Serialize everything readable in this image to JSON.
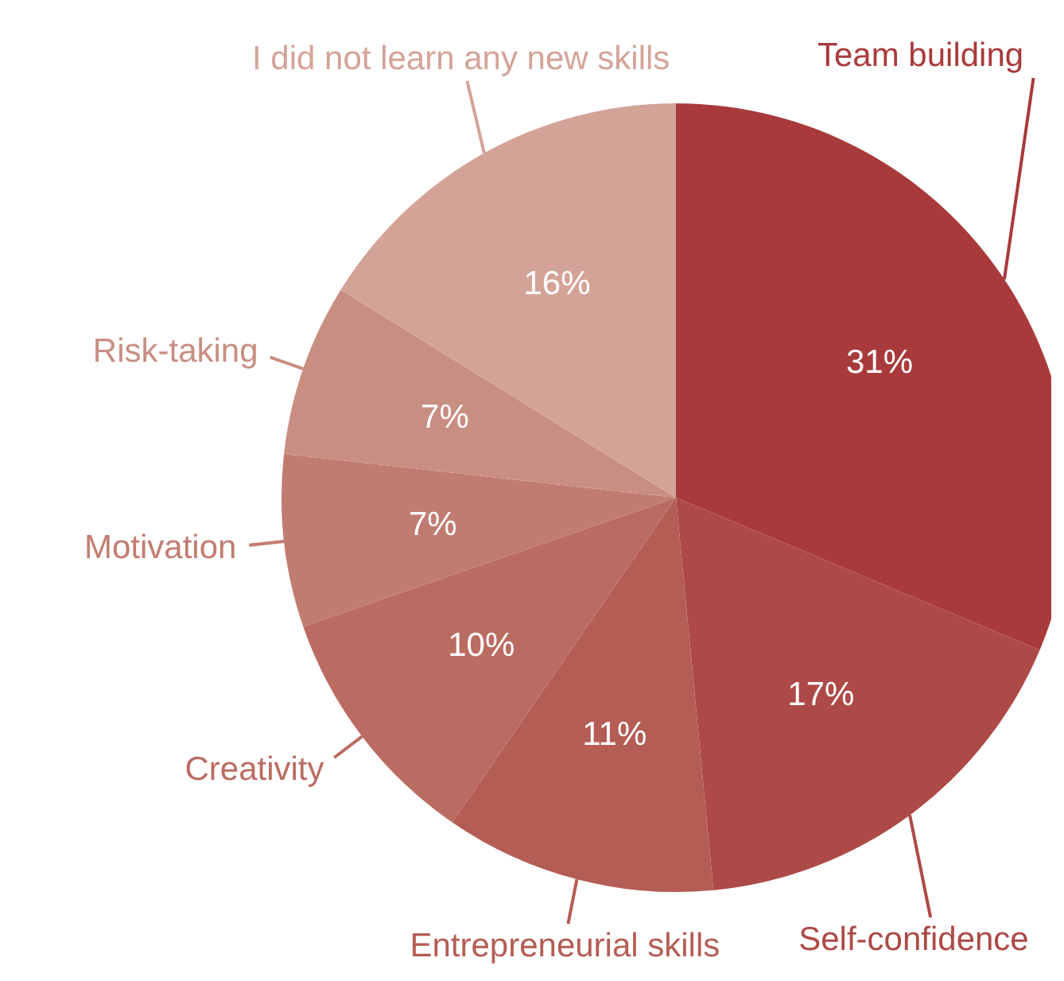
{
  "chart_data": {
    "type": "pie",
    "categories": [
      "Team building",
      "Self-confidence",
      "Entrepreneurial skills",
      "Creativity",
      "Motivation",
      "Risk-taking",
      "I did not learn any new skills"
    ],
    "values": [
      31,
      17,
      11,
      10,
      7,
      7,
      16
    ],
    "colors": [
      "#a83a3c",
      "#ad4a47",
      "#b45d55",
      "#bb6c62",
      "#c17c71",
      "#c98e82",
      "#d4a398"
    ],
    "value_labels": [
      "31%",
      "17%",
      "11%",
      "10%",
      "7%",
      "7%",
      "16%"
    ],
    "legend": false
  }
}
